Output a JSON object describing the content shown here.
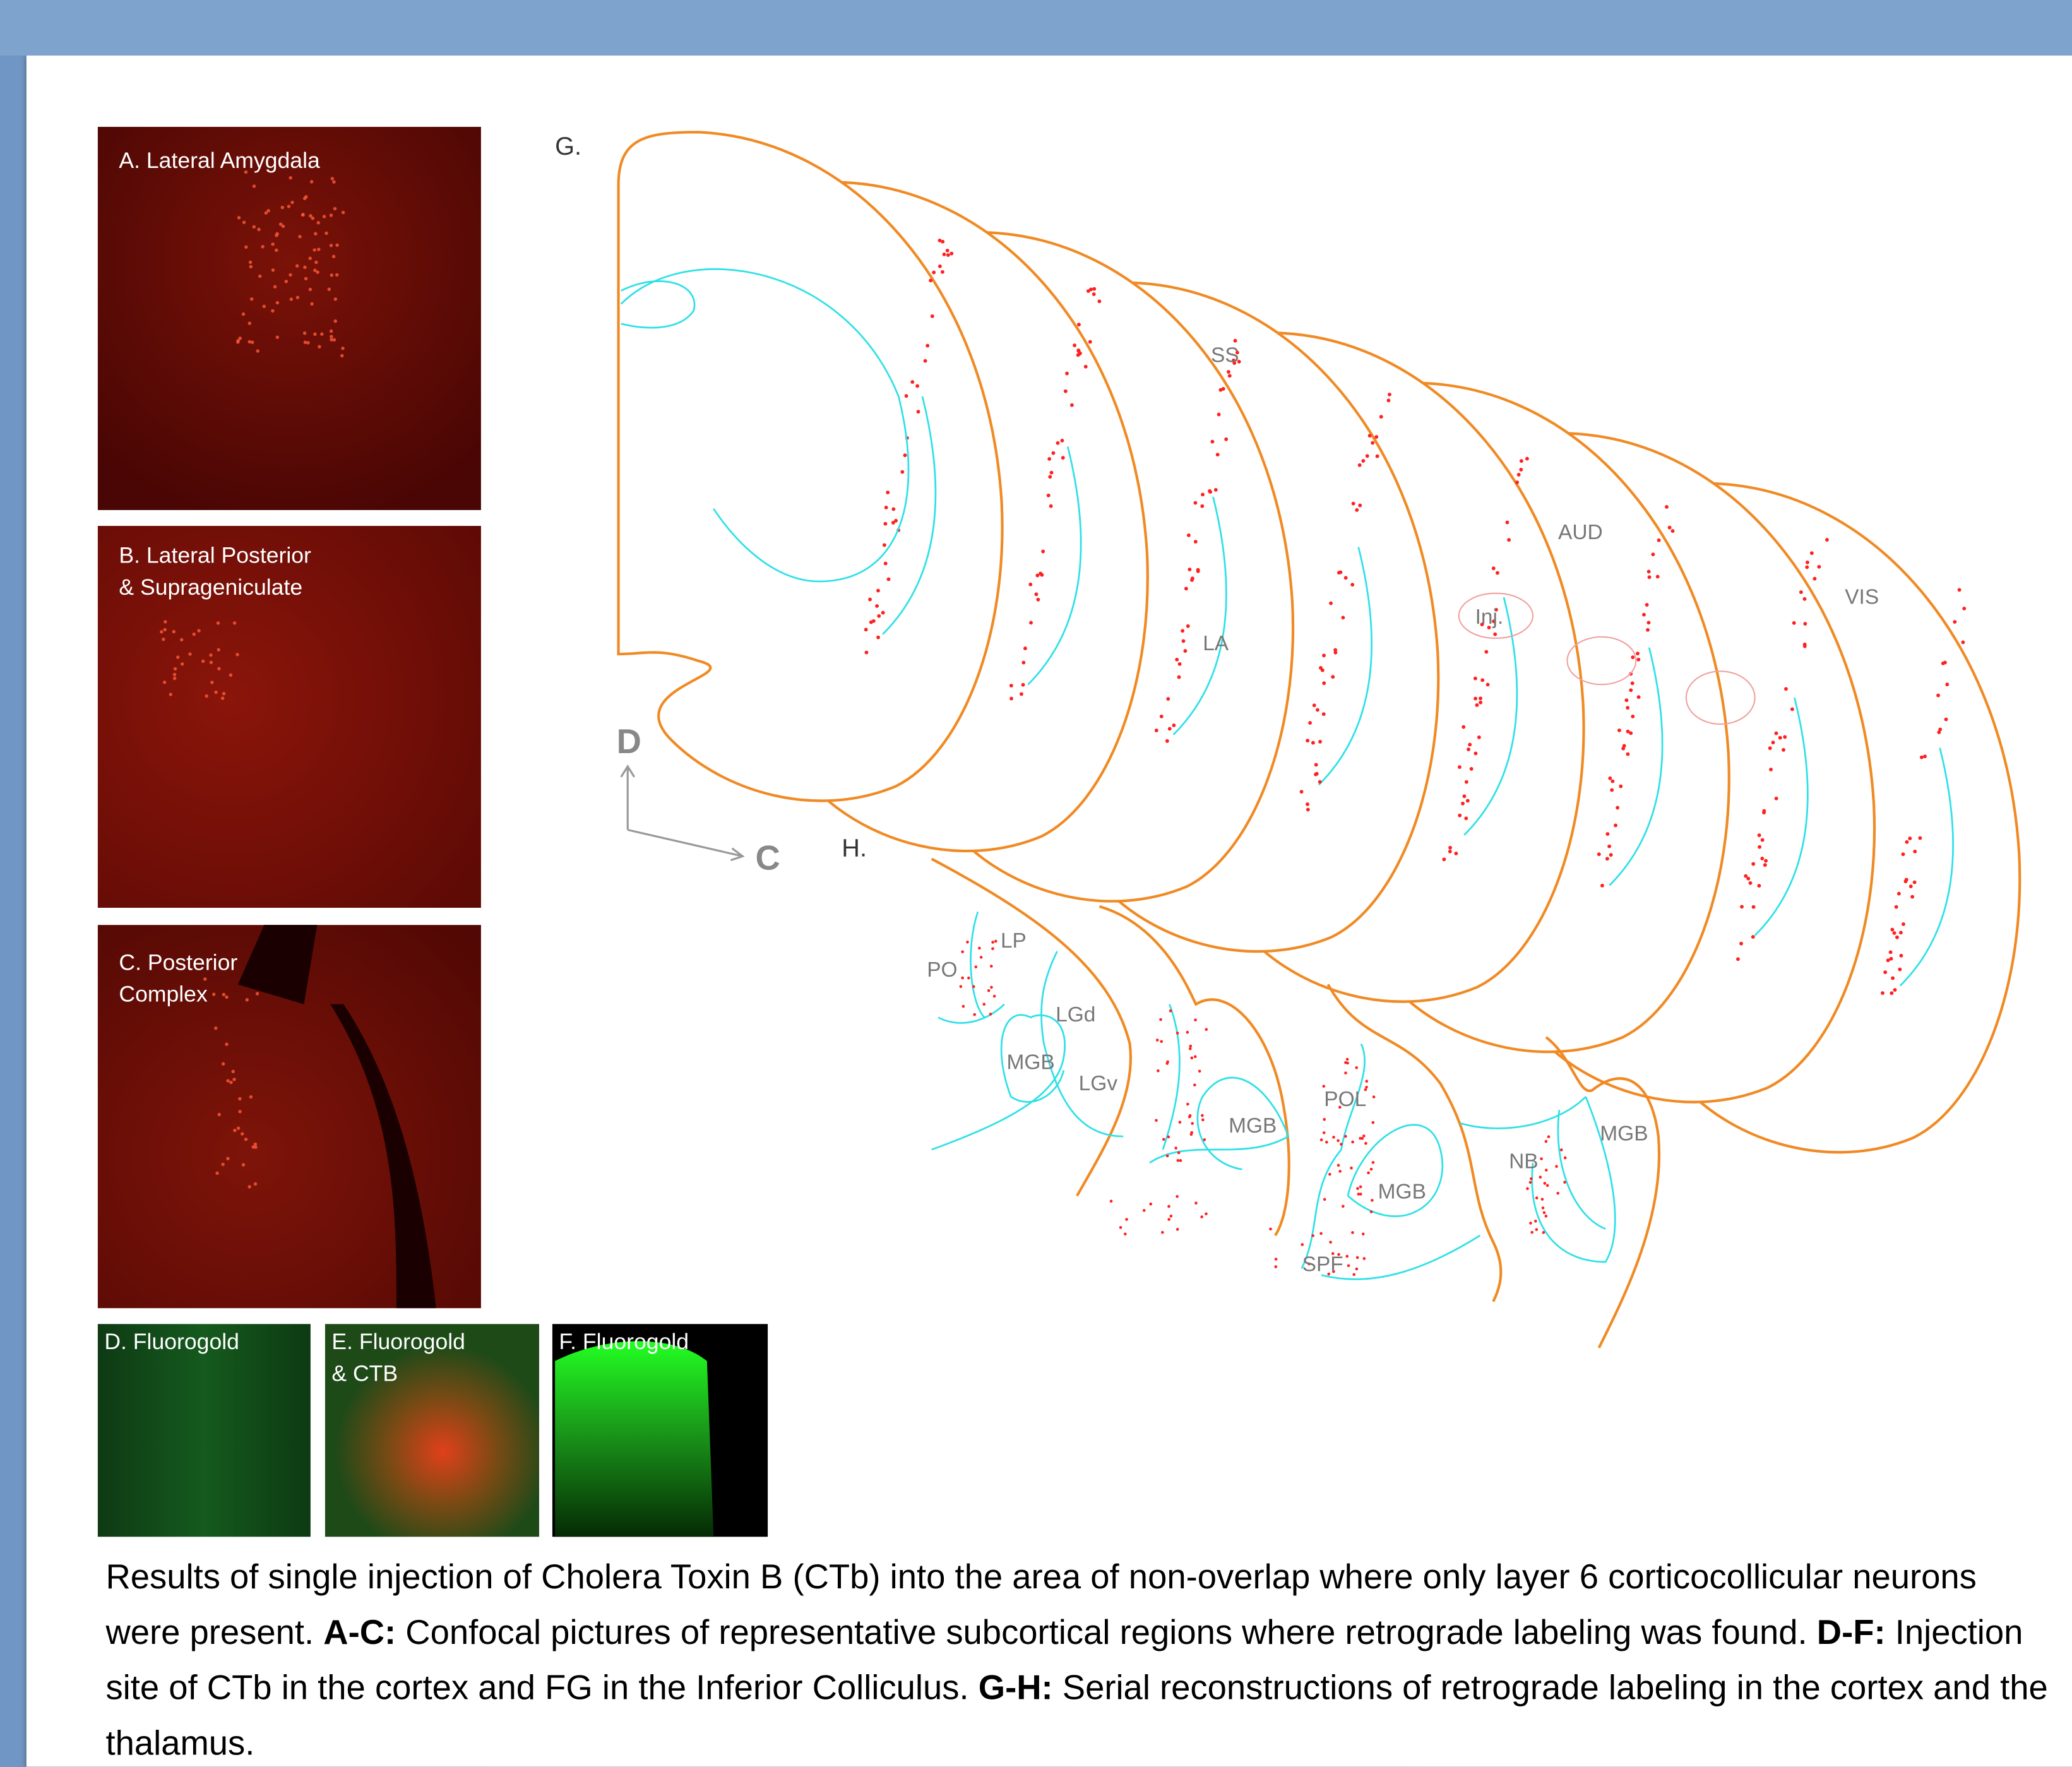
{
  "panels": [
    {
      "lines": [
        "A. Lateral Amygdala"
      ]
    },
    {
      "lines": [
        "B. Lateral Posterior",
        "& Suprageniculate"
      ]
    },
    {
      "lines": [
        "C. Posterior",
        "Complex"
      ]
    },
    {
      "lines": [
        "D. Fluorogold"
      ]
    },
    {
      "lines": [
        "E. Fluorogold",
        "& CTB"
      ]
    },
    {
      "lines": [
        "F. Fluorogold"
      ]
    }
  ],
  "panel_g": {
    "label": "G.",
    "regions": [
      "SS",
      "LA",
      "AUD",
      "Inj.",
      "VIS"
    ]
  },
  "orientation": {
    "dorsal": "D",
    "caudal": "C"
  },
  "panel_h": {
    "label": "H.",
    "regions": [
      "PO",
      "LP",
      "LGd",
      "MGB",
      "LGv",
      "MGB",
      "POL",
      "MGB",
      "SPF",
      "NB",
      "MGB"
    ]
  },
  "caption": {
    "segments": [
      {
        "text": "Results of single injection of Cholera Toxin B (CTb) into the area of non-overlap where only layer 6 corticocollicular neurons were present. ",
        "bold": false
      },
      {
        "text": "A-C:",
        "bold": true
      },
      {
        "text": " Confocal pictures of representative subcortical regions where retrograde labeling was found. ",
        "bold": false
      },
      {
        "text": "D-F:",
        "bold": true
      },
      {
        "text": " Injection site of CTb in the cortex and FG in the Inferior Colliculus. ",
        "bold": false
      },
      {
        "text": "G-H:",
        "bold": true
      },
      {
        "text": " Serial reconstructions of retrograde labeling in the cortex and the thalamus.",
        "bold": false
      }
    ]
  }
}
